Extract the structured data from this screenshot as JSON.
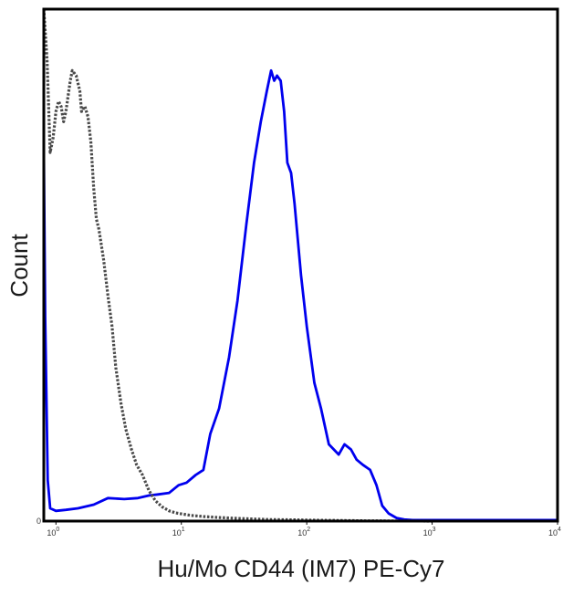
{
  "chart_data": {
    "type": "line",
    "title": "",
    "xlabel": "Hu/Mo CD44 (IM7) PE-Cy7",
    "ylabel": "Count",
    "x_scale": "log",
    "xlim": [
      0.8,
      10000
    ],
    "ylim": [
      0,
      100
    ],
    "grid": false,
    "legend": "none",
    "x_ticks": [
      {
        "value": 1,
        "base": "10",
        "exp": "0"
      },
      {
        "value": 10,
        "base": "10",
        "exp": "1"
      },
      {
        "value": 100,
        "base": "10",
        "exp": "2"
      },
      {
        "value": 1000,
        "base": "10",
        "exp": "3"
      },
      {
        "value": 10000,
        "base": "10",
        "exp": "4"
      }
    ],
    "y_ticks": [
      {
        "value": 0,
        "label": "0"
      }
    ],
    "series": [
      {
        "color": "#0000ee",
        "style": "solid",
        "x": [
          0.8,
          0.82,
          0.86,
          0.9,
          1.0,
          1.2,
          1.5,
          2.0,
          2.6,
          3.5,
          4.5,
          5.5,
          6.5,
          8.0,
          9.5,
          11,
          13,
          15,
          17,
          20,
          24,
          28,
          33,
          38,
          43,
          48,
          52,
          55,
          58,
          62,
          66,
          70,
          75,
          80,
          90,
          100,
          115,
          130,
          150,
          180,
          200,
          225,
          250,
          280,
          320,
          360,
          400,
          450,
          520,
          600,
          700,
          800,
          1000,
          2000,
          5000,
          10000
        ],
        "y": [
          73,
          40,
          8,
          2.5,
          2,
          2.2,
          2.5,
          3.2,
          4.5,
          4.3,
          4.5,
          5,
          5.2,
          5.5,
          7,
          7.5,
          9,
          10,
          17,
          22,
          32,
          43,
          58,
          70,
          78,
          84,
          88,
          86,
          87,
          86,
          80,
          70,
          68,
          62,
          48,
          38,
          27,
          22,
          15,
          13,
          15,
          14,
          12,
          11,
          10,
          7,
          3,
          1.5,
          0.6,
          0.3,
          0.2,
          0.2,
          0.2,
          0.2,
          0.2,
          0.2
        ]
      },
      {
        "color": "#4a4a4a",
        "style": "dotted",
        "x": [
          0.8,
          0.85,
          0.9,
          0.95,
          1.0,
          1.05,
          1.1,
          1.15,
          1.2,
          1.3,
          1.35,
          1.45,
          1.55,
          1.6,
          1.7,
          1.8,
          1.9,
          2.0,
          2.1,
          2.2,
          2.4,
          2.6,
          2.8,
          3.0,
          3.3,
          3.6,
          4.0,
          4.4,
          4.9,
          5.5,
          6.2,
          7.0,
          8.0,
          9.0,
          10,
          12,
          15,
          20,
          30,
          50,
          80,
          100,
          200,
          300,
          1000
        ],
        "y": [
          100,
          90,
          72,
          75,
          80,
          82,
          81,
          78,
          80,
          86,
          88,
          87,
          84,
          80,
          81,
          79,
          74,
          65,
          59,
          57,
          51,
          44,
          38,
          30,
          23,
          18,
          14,
          11,
          9,
          6,
          4,
          2.8,
          2,
          1.6,
          1.4,
          1.1,
          0.9,
          0.7,
          0.5,
          0.3,
          0.25,
          0.2,
          0.1,
          0.05,
          0
        ]
      }
    ]
  }
}
